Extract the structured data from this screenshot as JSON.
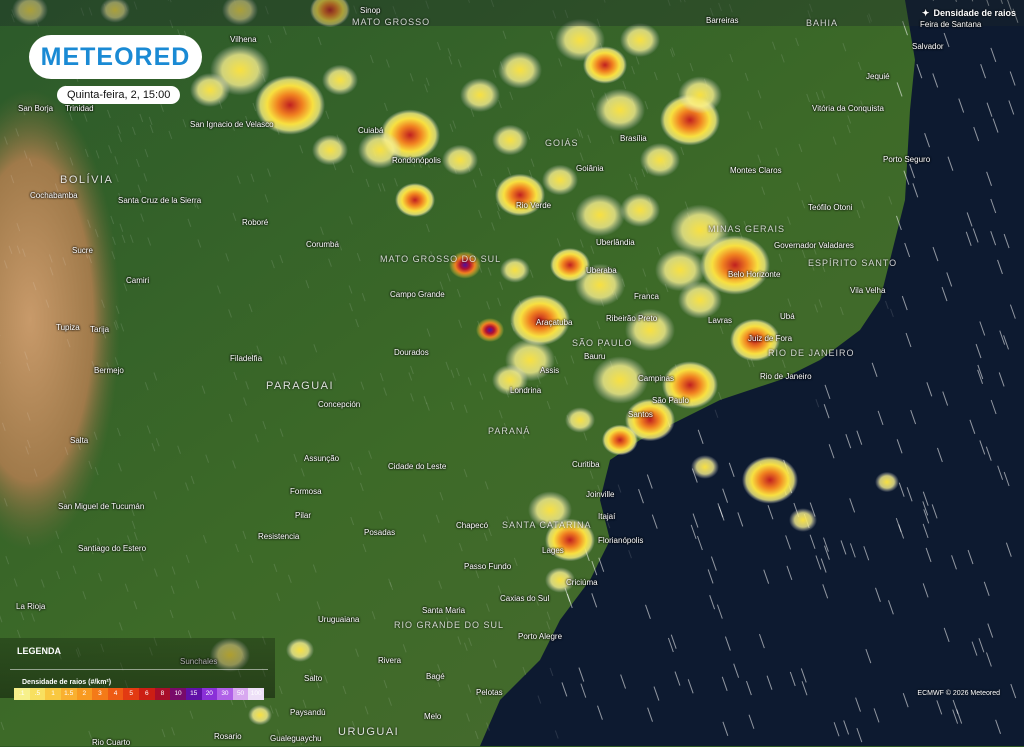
{
  "brand": {
    "logo_text": "METEORED"
  },
  "timestamp": "Quinta-feira, 2, 15:00",
  "layer": {
    "label": "Densidade de raios",
    "icon": "lightning-icon"
  },
  "legend": {
    "title": "LEGENDA",
    "subtitle": "Densidade de raios (#/km²)",
    "values": [
      ".1",
      ".5",
      "1",
      "1.5",
      "2",
      "3",
      "4",
      "5",
      "6",
      "8",
      "10",
      "15",
      "20",
      "30",
      "50",
      "100"
    ],
    "colors": [
      "#f7f08a",
      "#f8e060",
      "#f9c840",
      "#f9b030",
      "#f89a20",
      "#f47a18",
      "#ee5a14",
      "#e23a12",
      "#cc1e14",
      "#a80e2a",
      "#780a6a",
      "#6010a8",
      "#8a30d8",
      "#b060e8",
      "#d8a8f0",
      "#eee0f8"
    ]
  },
  "countries": [
    "BOLÍVIA",
    "PARAGUAI",
    "URUGUAI"
  ],
  "regions": [
    "MATO GROSSO",
    "BAHIA",
    "GOIÁS",
    "MINAS GERAIS",
    "MATO GROSSO DO SUL",
    "ESPÍRITO SANTO",
    "SÃO PAULO",
    "RIO DE JANEIRO",
    "PARANÁ",
    "SANTA CATARINA",
    "RIO GRANDE DO SUL"
  ],
  "cities": [
    "Sinop",
    "Barreiras",
    "Feira de Santana",
    "Salvador",
    "Vilhena",
    "Jequié",
    "Vitória da Conquista",
    "San Borja",
    "Trinidad",
    "San Ignacio de Velasco",
    "Cuiabá",
    "Rondonópolis",
    "Brasília",
    "Goiânia",
    "Porto Seguro",
    "Montes Claros",
    "Cochabamba",
    "Santa Cruz de la Sierra",
    "Rio Verde",
    "Teófilo Otoni",
    "Roboré",
    "Corumbá",
    "Uberlândia",
    "Governador Valadares",
    "Sucre",
    "Uberaba",
    "Belo Horizonte",
    "Camiri",
    "Campo Grande",
    "Franca",
    "Vila Velha",
    "Tupiza",
    "Tarija",
    "Araçatuba",
    "Ribeirão Preto",
    "Lavras",
    "Ubá",
    "Juiz de Fora",
    "Filadelfia",
    "Dourados",
    "Bauru",
    "Assis",
    "Campinas",
    "Rio de Janeiro",
    "Bermejo",
    "Concepción",
    "Londrina",
    "São Paulo",
    "Santos",
    "Salta",
    "Assunção",
    "Cidade do Leste",
    "Curitiba",
    "Formosa",
    "Joinville",
    "San Miguel de Tucumán",
    "Pilar",
    "Itajaí",
    "Chapecó",
    "Resistencia",
    "Posadas",
    "Florianópolis",
    "Santiago do Estero",
    "Lages",
    "Passo Fundo",
    "Criciúma",
    "Caxias do Sul",
    "La Rioja",
    "Uruguaiana",
    "Santa Maria",
    "Porto Alegre",
    "Sunchales",
    "Rivera",
    "Bagé",
    "Salto",
    "Pelotas",
    "Paysandú",
    "Melo",
    "Rosario",
    "Gualeguaychu",
    "Rio Cuarto"
  ],
  "credit": "ECMWF © 2026 Meteored"
}
